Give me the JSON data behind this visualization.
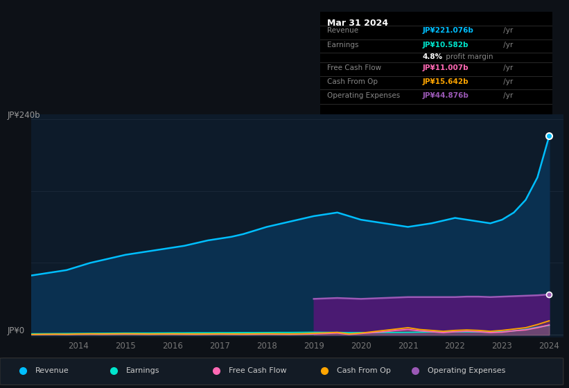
{
  "bg_color": "#0d1117",
  "plot_bg_color": "#0d1b2a",
  "grid_color": "#263545",
  "title_box": {
    "date": "Mar 31 2024",
    "rows": [
      {
        "label": "Revenue",
        "value": "JP¥221.076b",
        "value_color": "#00bfff"
      },
      {
        "label": "Earnings",
        "value": "JP¥10.582b",
        "value_color": "#00e5cc"
      },
      {
        "label": "",
        "value": "4.8% profit margin",
        "value_color": "#ffffff"
      },
      {
        "label": "Free Cash Flow",
        "value": "JP¥11.007b",
        "value_color": "#ff69b4"
      },
      {
        "label": "Cash From Op",
        "value": "JP¥15.642b",
        "value_color": "#ffa500"
      },
      {
        "label": "Operating Expenses",
        "value": "JP¥44.876b",
        "value_color": "#9b59b6"
      }
    ]
  },
  "ylabel_top": "JP¥240b",
  "ylabel_zero": "JP¥0",
  "ymax": 240,
  "revenue_years": [
    2013.0,
    2013.25,
    2013.5,
    2013.75,
    2014.0,
    2014.25,
    2014.5,
    2014.75,
    2015.0,
    2015.25,
    2015.5,
    2015.75,
    2016.0,
    2016.25,
    2016.5,
    2016.75,
    2017.0,
    2017.25,
    2017.5,
    2017.75,
    2018.0,
    2018.25,
    2018.5,
    2018.75,
    2019.0,
    2019.25,
    2019.5,
    2019.75,
    2020.0,
    2020.25,
    2020.5,
    2020.75,
    2021.0,
    2021.25,
    2021.5,
    2021.75,
    2022.0,
    2022.25,
    2022.5,
    2022.75,
    2023.0,
    2023.25,
    2023.5,
    2023.75,
    2024.0
  ],
  "revenue_values": [
    66,
    68,
    70,
    72,
    76,
    80,
    83,
    86,
    89,
    91,
    93,
    95,
    97,
    99,
    102,
    105,
    107,
    109,
    112,
    116,
    120,
    123,
    126,
    129,
    132,
    134,
    136,
    132,
    128,
    126,
    124,
    122,
    120,
    122,
    124,
    127,
    130,
    128,
    126,
    124,
    128,
    136,
    150,
    175,
    221
  ],
  "opex_years": [
    2019.0,
    2019.25,
    2019.5,
    2019.75,
    2020.0,
    2020.25,
    2020.5,
    2020.75,
    2021.0,
    2021.25,
    2021.5,
    2021.75,
    2022.0,
    2022.25,
    2022.5,
    2022.75,
    2023.0,
    2023.25,
    2023.5,
    2023.75,
    2024.0
  ],
  "opex_values": [
    40.0,
    40.5,
    41.0,
    40.5,
    40.0,
    40.5,
    41.0,
    41.5,
    42.0,
    42.0,
    42.0,
    42.0,
    42.0,
    42.5,
    42.5,
    42.0,
    42.5,
    43.0,
    43.5,
    44.0,
    44.876
  ],
  "earnings_years": [
    2013.0,
    2013.25,
    2013.5,
    2013.75,
    2014.0,
    2014.25,
    2014.5,
    2014.75,
    2015.0,
    2015.25,
    2015.5,
    2015.75,
    2016.0,
    2016.25,
    2016.5,
    2016.75,
    2017.0,
    2017.25,
    2017.5,
    2017.75,
    2018.0,
    2018.25,
    2018.5,
    2018.75,
    2019.0,
    2019.25,
    2019.5,
    2019.75,
    2020.0,
    2020.25,
    2020.5,
    2020.75,
    2021.0,
    2021.25,
    2021.5,
    2021.75,
    2022.0,
    2022.25,
    2022.5,
    2022.75,
    2023.0,
    2023.25,
    2023.5,
    2023.75,
    2024.0
  ],
  "earnings_values": [
    1.2,
    1.3,
    1.4,
    1.5,
    1.6,
    1.7,
    1.8,
    1.9,
    2.0,
    2.0,
    2.0,
    2.1,
    2.2,
    2.2,
    2.3,
    2.3,
    2.4,
    2.4,
    2.5,
    2.5,
    2.6,
    2.7,
    2.7,
    2.8,
    2.9,
    2.8,
    2.8,
    2.5,
    2.6,
    2.6,
    2.7,
    2.7,
    2.8,
    3.0,
    3.2,
    3.2,
    3.4,
    3.3,
    3.2,
    3.1,
    3.5,
    4.5,
    6.0,
    8.5,
    10.582
  ],
  "fcf_years": [
    2013.0,
    2013.25,
    2013.5,
    2013.75,
    2014.0,
    2014.25,
    2014.5,
    2014.75,
    2015.0,
    2015.25,
    2015.5,
    2015.75,
    2016.0,
    2016.25,
    2016.5,
    2016.75,
    2017.0,
    2017.25,
    2017.5,
    2017.75,
    2018.0,
    2018.25,
    2018.5,
    2018.75,
    2019.0,
    2019.25,
    2019.5,
    2019.75,
    2020.0,
    2020.25,
    2020.5,
    2020.75,
    2021.0,
    2021.25,
    2021.5,
    2021.75,
    2022.0,
    2022.25,
    2022.5,
    2022.75,
    2023.0,
    2023.25,
    2023.5,
    2023.75,
    2024.0
  ],
  "fcf_values": [
    0.3,
    0.4,
    0.5,
    0.4,
    0.6,
    0.7,
    0.6,
    0.7,
    0.8,
    0.7,
    0.6,
    0.7,
    0.7,
    0.6,
    0.5,
    0.6,
    0.7,
    0.6,
    0.5,
    0.6,
    0.7,
    0.6,
    0.5,
    0.7,
    1.0,
    1.5,
    2.0,
    0.5,
    1.5,
    2.5,
    3.5,
    5.0,
    6.0,
    4.5,
    3.5,
    2.5,
    3.5,
    4.0,
    3.5,
    2.5,
    3.0,
    4.5,
    5.5,
    8.0,
    11.007
  ],
  "cfop_years": [
    2013.0,
    2013.25,
    2013.5,
    2013.75,
    2014.0,
    2014.25,
    2014.5,
    2014.75,
    2015.0,
    2015.25,
    2015.5,
    2015.75,
    2016.0,
    2016.25,
    2016.5,
    2016.75,
    2017.0,
    2017.25,
    2017.5,
    2017.75,
    2018.0,
    2018.25,
    2018.5,
    2018.75,
    2019.0,
    2019.25,
    2019.5,
    2019.75,
    2020.0,
    2020.25,
    2020.5,
    2020.75,
    2021.0,
    2021.25,
    2021.5,
    2021.75,
    2022.0,
    2022.25,
    2022.5,
    2022.75,
    2023.0,
    2023.25,
    2023.5,
    2023.75,
    2024.0
  ],
  "cfop_values": [
    0.5,
    0.7,
    0.8,
    0.7,
    1.0,
    1.2,
    1.1,
    1.2,
    1.3,
    1.2,
    1.0,
    1.1,
    1.2,
    1.1,
    1.0,
    1.1,
    1.2,
    1.1,
    1.0,
    1.2,
    1.3,
    1.2,
    1.1,
    1.3,
    1.8,
    2.2,
    2.8,
    1.0,
    2.0,
    3.5,
    5.0,
    6.5,
    8.0,
    6.0,
    5.0,
    4.0,
    5.0,
    5.5,
    5.0,
    4.0,
    5.0,
    6.5,
    8.0,
    11.5,
    15.642
  ],
  "x_ticks": [
    2014,
    2015,
    2016,
    2017,
    2018,
    2019,
    2020,
    2021,
    2022,
    2023,
    2024
  ],
  "revenue_color": "#00bfff",
  "revenue_fill": "#0a3050",
  "opex_color": "#9b59b6",
  "opex_fill": "#4a1a72",
  "earnings_color": "#00e5cc",
  "fcf_color": "#ff69b4",
  "cfop_color": "#ffa500",
  "legend": [
    {
      "label": "Revenue",
      "color": "#00bfff"
    },
    {
      "label": "Earnings",
      "color": "#00e5cc"
    },
    {
      "label": "Free Cash Flow",
      "color": "#ff69b4"
    },
    {
      "label": "Cash From Op",
      "color": "#ffa500"
    },
    {
      "label": "Operating Expenses",
      "color": "#9b59b6"
    }
  ]
}
